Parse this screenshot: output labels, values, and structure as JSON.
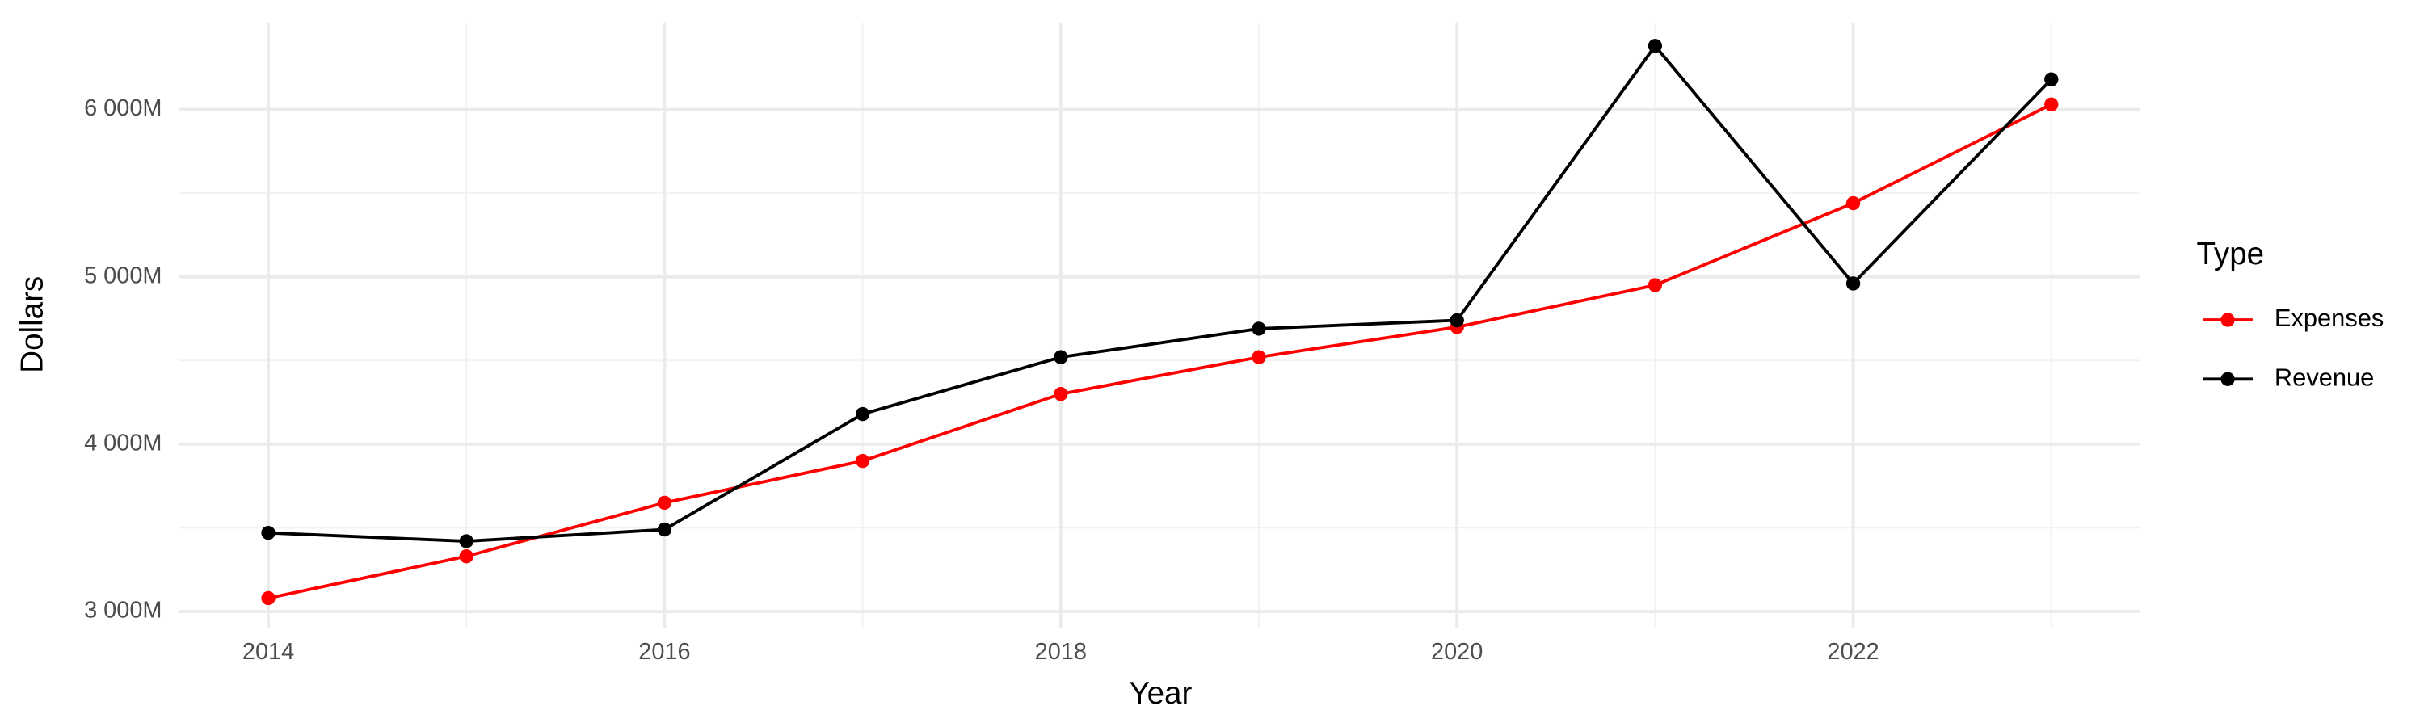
{
  "chart_data": {
    "type": "line",
    "x_label": "Year",
    "y_label": "Dollars",
    "legend_title": "Type",
    "legend_position": "right",
    "grid": true,
    "x": [
      2014,
      2015,
      2016,
      2017,
      2018,
      2019,
      2020,
      2021,
      2022,
      2023
    ],
    "series": [
      {
        "name": "Expenses",
        "color": "#ff0000",
        "values": [
          3080,
          3330,
          3650,
          3900,
          4300,
          4520,
          4700,
          4950,
          5440,
          6030
        ]
      },
      {
        "name": "Revenue",
        "color": "#000000",
        "values": [
          3470,
          3420,
          3490,
          4180,
          4520,
          4690,
          4740,
          6380,
          4960,
          6180
        ]
      }
    ],
    "xlim": [
      2013.55,
      2023.45
    ],
    "xticks": [
      2014,
      2016,
      2018,
      2020,
      2022
    ],
    "ylim": [
      2900,
      6520
    ],
    "yticks": [
      {
        "value": 3000,
        "label": "3 000M"
      },
      {
        "value": 4000,
        "label": "4 000M"
      },
      {
        "value": 5000,
        "label": "5 000M"
      },
      {
        "value": 6000,
        "label": "6 000M"
      }
    ]
  }
}
